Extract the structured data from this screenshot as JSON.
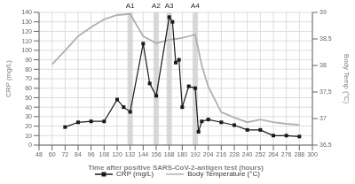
{
  "chart_data": {
    "type": "line",
    "xlabel": "Time after positive SARS-CoV-2-antigen test (hours)",
    "ylabel": "CRP (mg/L)",
    "y2label": "Body Temp (°C)",
    "xlim": [
      48,
      300
    ],
    "xticks": [
      48,
      60,
      72,
      84,
      96,
      108,
      120,
      132,
      144,
      156,
      168,
      180,
      192,
      204,
      216,
      228,
      240,
      252,
      264,
      276,
      288,
      300
    ],
    "ylim": [
      0,
      140
    ],
    "yticks": [
      0,
      10,
      20,
      30,
      40,
      50,
      60,
      70,
      80,
      90,
      100,
      110,
      120,
      130,
      140
    ],
    "y2lim": [
      36.5,
      39.0
    ],
    "y2ticks": [
      {
        "value": 36.5,
        "label": "36,5"
      },
      37,
      {
        "value": 37.5,
        "label": "37,5"
      },
      38,
      {
        "value": 38.5,
        "label": "38,5"
      },
      39
    ],
    "grid": true,
    "legend": "bottom",
    "series": [
      {
        "name": "CRP (mg/L)",
        "color": "#1a1a1a",
        "marker": "square",
        "x": [
          72,
          84,
          96,
          108,
          120,
          126,
          132,
          144,
          150,
          156,
          168,
          171,
          174,
          177,
          180,
          186,
          192,
          195,
          198,
          204,
          216,
          228,
          240,
          252,
          264,
          276,
          288
        ],
        "values": [
          19,
          24,
          25,
          25,
          48,
          40,
          35,
          107,
          65,
          52,
          135,
          130,
          87,
          90,
          40,
          62,
          60,
          14,
          25,
          27,
          24,
          21,
          16,
          16,
          10,
          10,
          9
        ]
      },
      {
        "name": "Body Temperature (°C)",
        "color": "#b0b0b0",
        "marker": "none",
        "axis": "y2",
        "x": [
          60,
          72,
          84,
          96,
          108,
          120,
          132,
          144,
          156,
          168,
          174,
          180,
          186,
          192,
          198,
          204,
          216,
          228,
          240,
          252,
          264,
          276,
          288
        ],
        "values": [
          38.02,
          38.28,
          38.55,
          38.72,
          38.87,
          38.95,
          38.97,
          38.55,
          38.42,
          38.48,
          38.5,
          38.52,
          38.55,
          38.58,
          38.0,
          37.6,
          37.12,
          37.02,
          36.93,
          36.98,
          36.93,
          36.9,
          36.88
        ]
      }
    ],
    "shaded_regions": [
      {
        "x0": 129.5,
        "x1": 134.5
      },
      {
        "x0": 153.5,
        "x1": 158.5
      },
      {
        "x0": 165.5,
        "x1": 170.5
      },
      {
        "x0": 189.5,
        "x1": 194.5
      }
    ],
    "annotations": [
      {
        "text": "A1",
        "x": 132
      },
      {
        "text": "A2",
        "x": 156
      },
      {
        "text": "A3",
        "x": 168
      },
      {
        "text": "A4",
        "x": 192
      }
    ]
  }
}
